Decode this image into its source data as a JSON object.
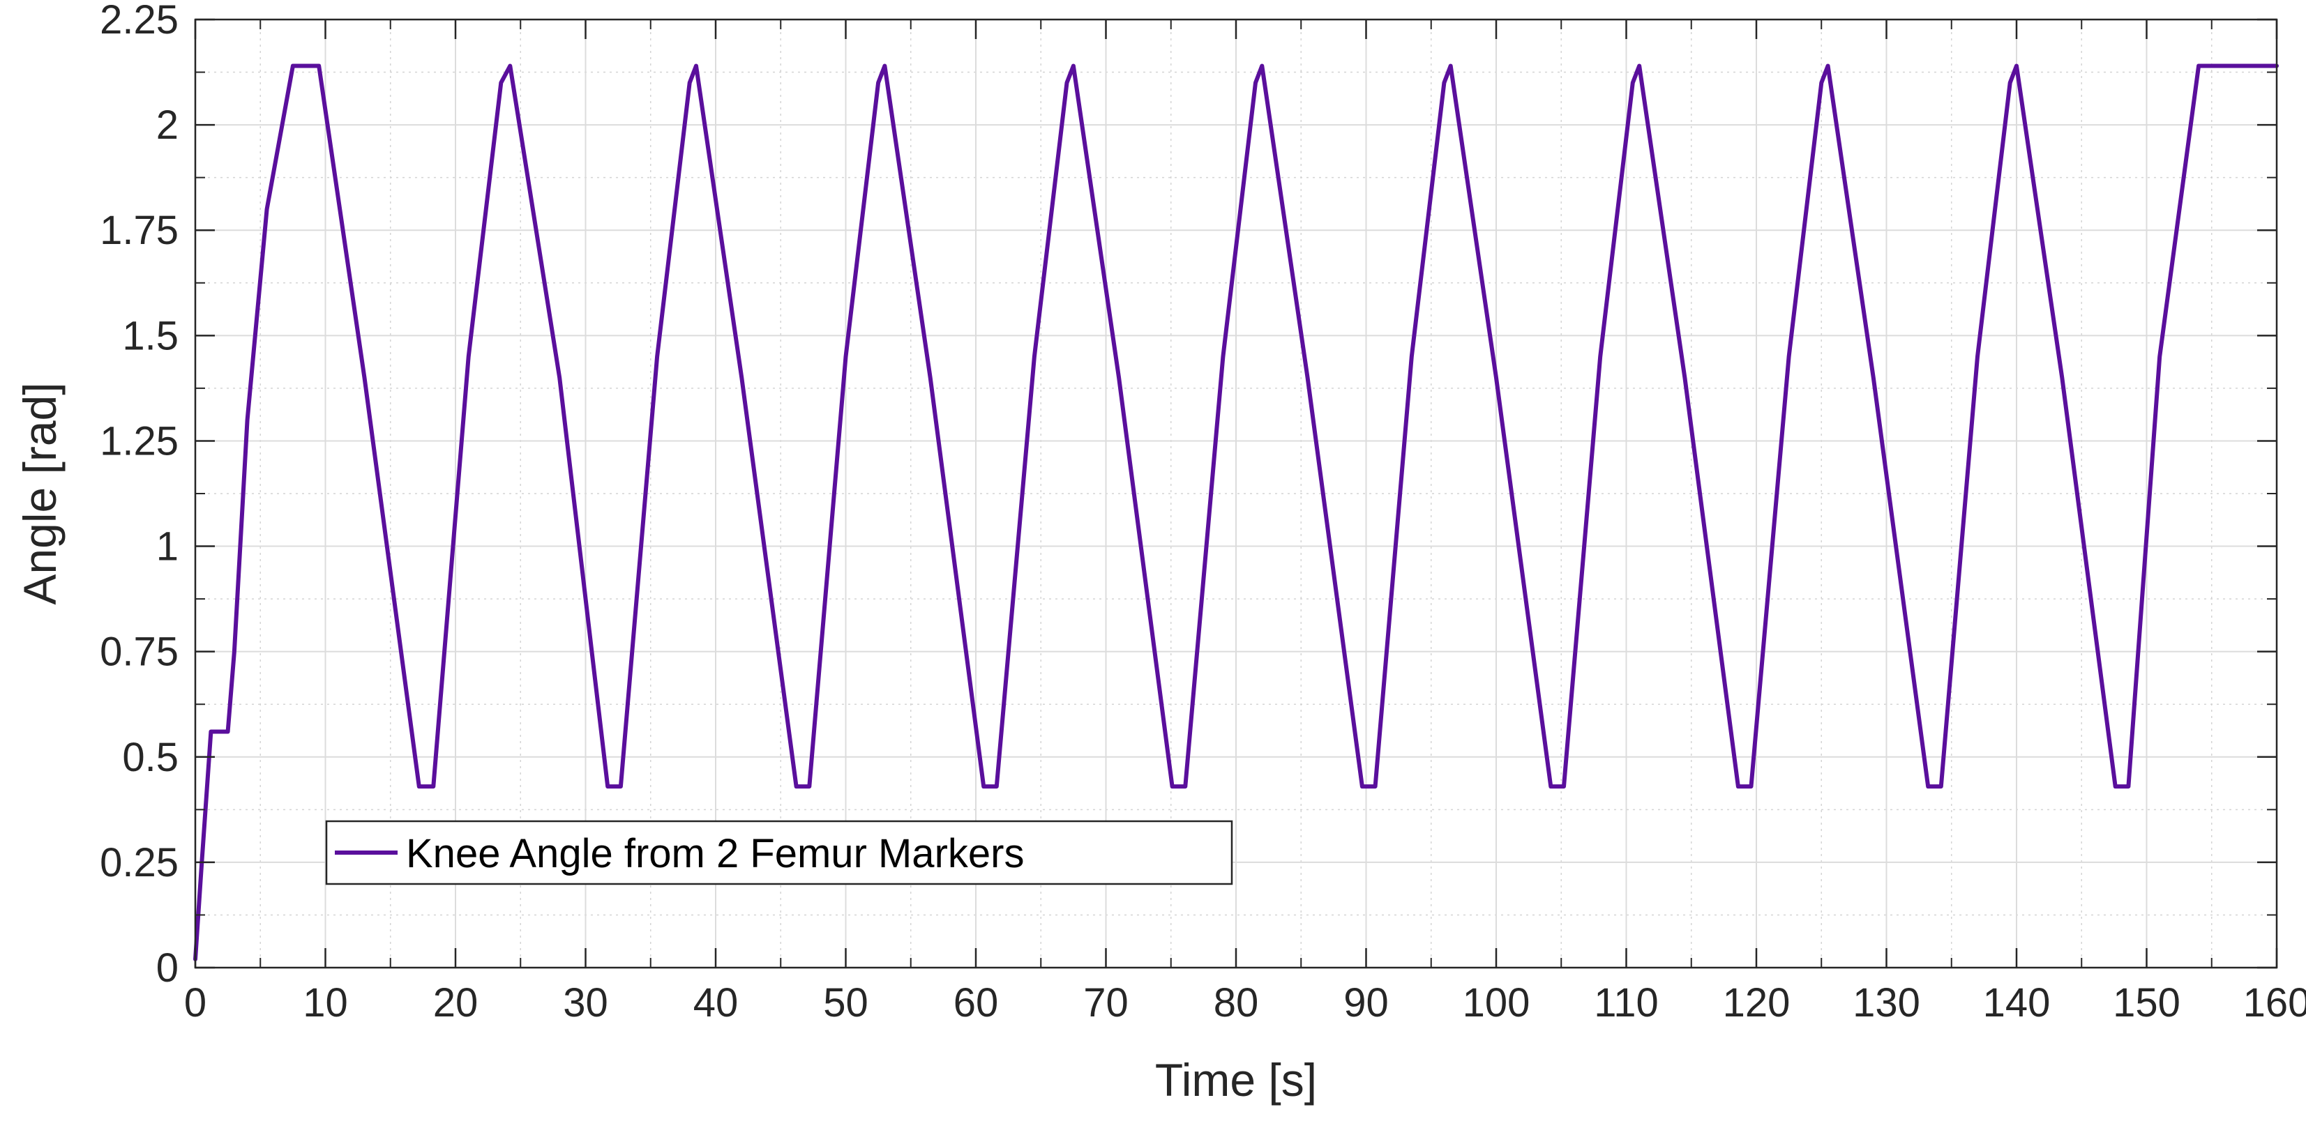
{
  "chart_data": {
    "type": "line",
    "xlabel": "Time [s]",
    "ylabel": "Angle [rad]",
    "xlim": [
      0,
      160
    ],
    "ylim": [
      0,
      2.25
    ],
    "x_ticks": [
      0,
      10,
      20,
      30,
      40,
      50,
      60,
      70,
      80,
      90,
      100,
      110,
      120,
      130,
      140,
      150,
      160
    ],
    "x_tick_labels": [
      "0",
      "10",
      "20",
      "30",
      "40",
      "50",
      "60",
      "70",
      "80",
      "90",
      "100",
      "110",
      "120",
      "130",
      "140",
      "150",
      "160"
    ],
    "y_ticks": [
      0,
      0.25,
      0.5,
      0.75,
      1,
      1.25,
      1.5,
      1.75,
      2,
      2.25
    ],
    "y_tick_labels": [
      "0",
      "0.25",
      "0.5",
      "0.75",
      "1",
      "1.25",
      "1.5",
      "1.75",
      "2",
      "2.25"
    ],
    "grid": true,
    "minor_grid": true,
    "legend_position": "bottom-left",
    "series": [
      {
        "name": "Knee Angle from 2 Femur Markers",
        "color": "#5a0f9c",
        "x": [
          0,
          0.5,
          1.2,
          1.4,
          2.5,
          3.0,
          4.0,
          5.5,
          7.5,
          8.0,
          9.5,
          13.0,
          17.2,
          18.3,
          21.0,
          23.5,
          24.2,
          28.0,
          31.7,
          32.7,
          35.5,
          38.0,
          38.5,
          42.0,
          46.2,
          47.2,
          50.0,
          52.5,
          53.0,
          56.5,
          60.6,
          61.6,
          64.5,
          67.0,
          67.5,
          71.0,
          75.1,
          76.1,
          79.0,
          81.5,
          82.0,
          85.5,
          89.7,
          90.7,
          93.5,
          96.0,
          96.5,
          100.0,
          104.2,
          105.2,
          108.0,
          110.5,
          111.0,
          114.5,
          118.6,
          119.6,
          122.5,
          125.0,
          125.5,
          129.0,
          133.2,
          134.2,
          137.0,
          139.5,
          140.0,
          143.5,
          147.6,
          148.6,
          151.0,
          154.0,
          155.0,
          160.0
        ],
        "y": [
          0.02,
          0.25,
          0.56,
          0.56,
          0.56,
          0.75,
          1.3,
          1.8,
          2.14,
          2.14,
          2.14,
          1.4,
          0.43,
          0.43,
          1.45,
          2.1,
          2.14,
          1.4,
          0.43,
          0.43,
          1.45,
          2.1,
          2.14,
          1.4,
          0.43,
          0.43,
          1.45,
          2.1,
          2.14,
          1.4,
          0.43,
          0.43,
          1.45,
          2.1,
          2.14,
          1.4,
          0.43,
          0.43,
          1.45,
          2.1,
          2.14,
          1.4,
          0.43,
          0.43,
          1.45,
          2.1,
          2.14,
          1.4,
          0.43,
          0.43,
          1.45,
          2.1,
          2.14,
          1.4,
          0.43,
          0.43,
          1.45,
          2.1,
          2.14,
          1.4,
          0.43,
          0.43,
          1.45,
          2.1,
          2.14,
          1.4,
          0.43,
          0.43,
          1.45,
          2.14,
          2.14,
          2.14
        ]
      }
    ]
  }
}
